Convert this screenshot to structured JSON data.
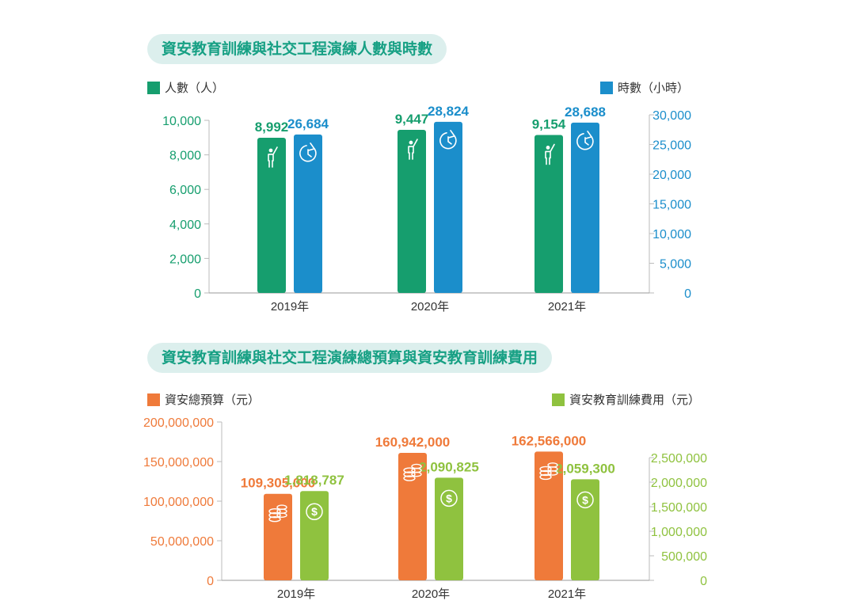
{
  "charts": {
    "top": {
      "title": "資安教育訓練與社交工程演練人數與時數"
    },
    "bottom": {
      "title": "資安教育訓練與社交工程演練總預算與資安教育訓練費用"
    }
  },
  "colors": {
    "green": "#169e6e",
    "blue": "#1b8ecb",
    "orange": "#ef7a3a",
    "lime": "#8fc23f",
    "title_bg": "#dcefed",
    "title_text": "#17a084"
  },
  "chart_data": [
    {
      "type": "bar",
      "title": "資安教育訓練與社交工程演練人數與時數",
      "categories": [
        "2019年",
        "2020年",
        "2021年"
      ],
      "series": [
        {
          "name": "人數（人）",
          "axis": "left",
          "values": [
            8992,
            9447,
            9154
          ],
          "labels": [
            "8,992",
            "9,447",
            "9,154"
          ],
          "icon": "person-icon"
        },
        {
          "name": "時數（小時）",
          "axis": "right",
          "values": [
            26684,
            28824,
            28688
          ],
          "labels": [
            "26,684",
            "28,824",
            "28,688"
          ],
          "icon": "clock-icon"
        }
      ],
      "left_axis": {
        "ylim": [
          0,
          10000
        ],
        "ticks": [
          "0",
          "2,000",
          "4,000",
          "6,000",
          "8,000",
          "10,000"
        ]
      },
      "right_axis": {
        "ylim": [
          0,
          30000
        ],
        "ticks": [
          "0",
          "5,000",
          "10,000",
          "15,000",
          "20,000",
          "25,000",
          "30,000"
        ]
      },
      "legend": [
        "top-left",
        "top-right"
      ]
    },
    {
      "type": "bar",
      "title": "資安教育訓練與社交工程演練總預算與資安教育訓練費用",
      "categories": [
        "2019年",
        "2020年",
        "2021年"
      ],
      "series": [
        {
          "name": "資安總預算（元）",
          "axis": "left",
          "values": [
            109305000,
            160942000,
            162566000
          ],
          "labels": [
            "109,305,000",
            "160,942,000",
            "162,566,000"
          ],
          "icon": "coins-icon"
        },
        {
          "name": "資安教育訓練費用（元）",
          "axis": "right",
          "values": [
            1818787,
            2090825,
            2059300
          ],
          "labels": [
            "1,818,787",
            "2,090,825",
            "2,059,300"
          ],
          "icon": "dollar-icon"
        }
      ],
      "left_axis": {
        "ylim": [
          0,
          200000000
        ],
        "ticks": [
          "0",
          "50,000,000",
          "100,000,000",
          "150,000,000",
          "200,000,000"
        ]
      },
      "right_axis": {
        "ylim": [
          0,
          2500000
        ],
        "ticks": [
          "0",
          "500,000",
          "1,000,000",
          "1,500,000",
          "2,000,000",
          "2,500,000"
        ]
      },
      "legend": [
        "top-left",
        "top-right"
      ]
    }
  ]
}
